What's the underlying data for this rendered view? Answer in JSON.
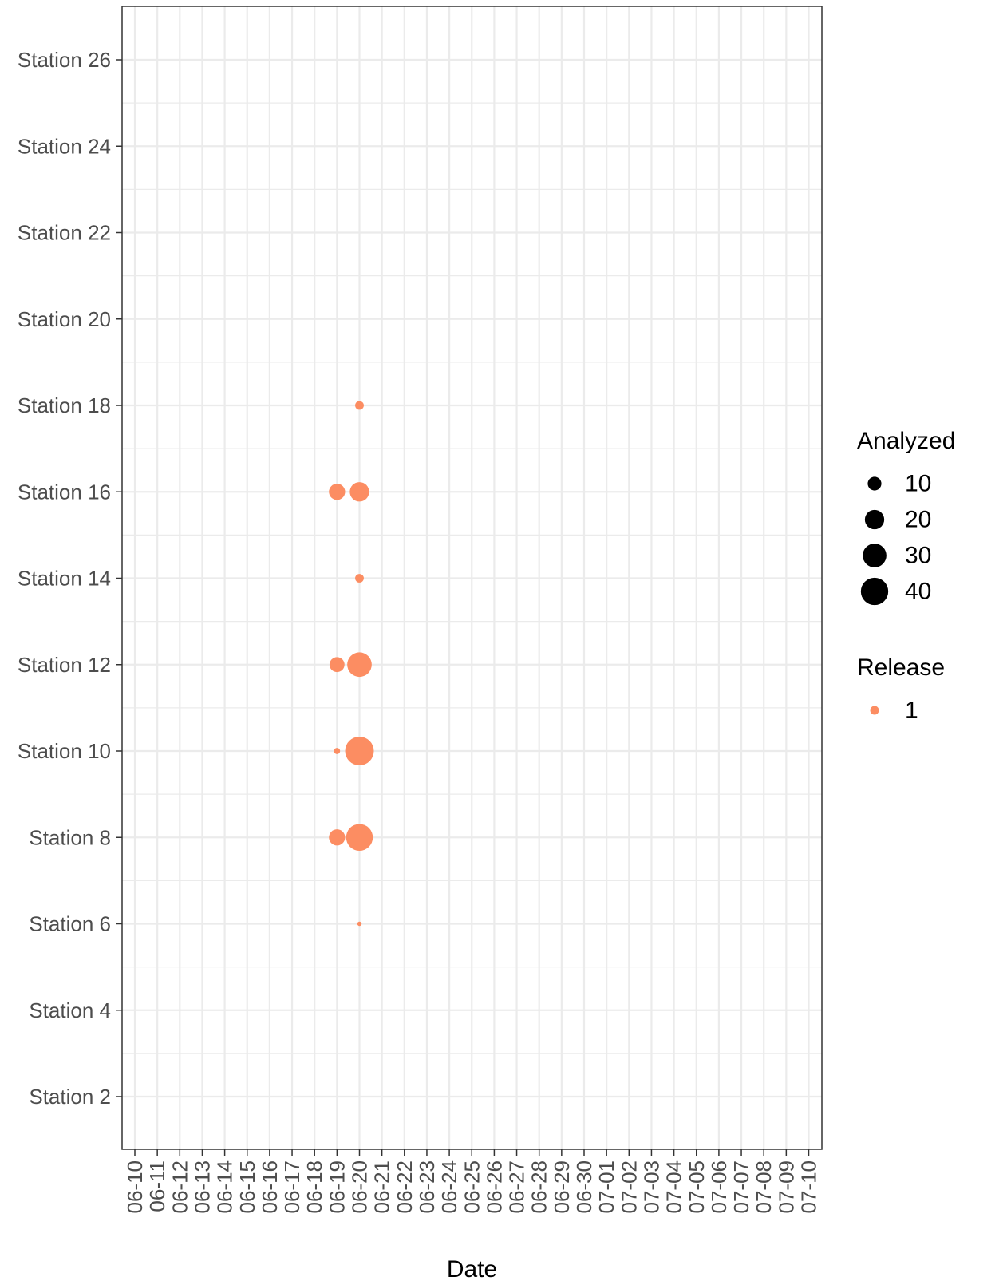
{
  "chart_data": {
    "type": "scatter",
    "title": "",
    "xlabel": "Date",
    "ylabel": "",
    "x_categories": [
      "06-10",
      "06-11",
      "06-12",
      "06-13",
      "06-14",
      "06-15",
      "06-16",
      "06-17",
      "06-18",
      "06-19",
      "06-20",
      "06-21",
      "06-22",
      "06-23",
      "06-24",
      "06-25",
      "06-26",
      "06-27",
      "06-28",
      "06-29",
      "06-30",
      "07-01",
      "07-02",
      "07-03",
      "07-04",
      "07-05",
      "07-06",
      "07-07",
      "07-08",
      "07-09",
      "07-10"
    ],
    "y_categories": [
      "Station 2",
      "Station 4",
      "Station 6",
      "Station 8",
      "Station 10",
      "Station 12",
      "Station 14",
      "Station 16",
      "Station 18",
      "Station 20",
      "Station 22",
      "Station 24",
      "Station 26"
    ],
    "grid": true,
    "legend_position": "right",
    "size_legend": {
      "title": "Analyzed",
      "values": [
        10,
        20,
        30,
        40
      ],
      "labels": [
        "10",
        "20",
        "30",
        "40"
      ]
    },
    "color_legend": {
      "title": "Release",
      "entries": [
        {
          "label": "1",
          "color": "#fc8d62"
        }
      ]
    },
    "series": [
      {
        "name": "1",
        "color": "#fc8d62",
        "points": [
          {
            "x": "06-20",
            "y": "Station 18",
            "size": 4
          },
          {
            "x": "06-19",
            "y": "Station 16",
            "size": 14
          },
          {
            "x": "06-20",
            "y": "Station 16",
            "size": 20
          },
          {
            "x": "06-20",
            "y": "Station 14",
            "size": 4
          },
          {
            "x": "06-19",
            "y": "Station 12",
            "size": 12
          },
          {
            "x": "06-20",
            "y": "Station 12",
            "size": 32
          },
          {
            "x": "06-19",
            "y": "Station 10",
            "size": 2
          },
          {
            "x": "06-20",
            "y": "Station 10",
            "size": 44
          },
          {
            "x": "06-19",
            "y": "Station 8",
            "size": 14
          },
          {
            "x": "06-20",
            "y": "Station 8",
            "size": 38
          },
          {
            "x": "06-20",
            "y": "Station 6",
            "size": 1
          }
        ]
      }
    ]
  }
}
